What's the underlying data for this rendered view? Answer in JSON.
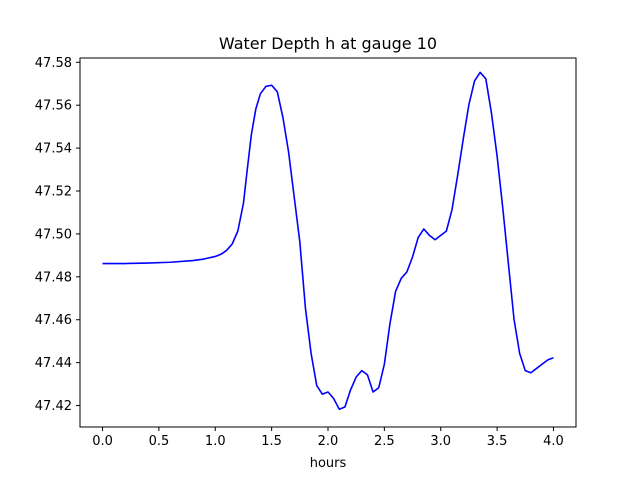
{
  "chart_data": {
    "type": "line",
    "title": "Water Depth h at gauge 10",
    "xlabel": "hours",
    "ylabel": "",
    "xlim": [
      -0.2,
      4.2
    ],
    "ylim": [
      47.41,
      47.582
    ],
    "grid": false,
    "x_ticks": [
      0.0,
      0.5,
      1.0,
      1.5,
      2.0,
      2.5,
      3.0,
      3.5,
      4.0
    ],
    "x_tick_labels": [
      "0.0",
      "0.5",
      "1.0",
      "1.5",
      "2.0",
      "2.5",
      "3.0",
      "3.5",
      "4.0"
    ],
    "y_ticks": [
      47.42,
      47.44,
      47.46,
      47.48,
      47.5,
      47.52,
      47.54,
      47.56,
      47.58
    ],
    "y_tick_labels": [
      "47.42",
      "47.44",
      "47.46",
      "47.48",
      "47.50",
      "47.52",
      "47.54",
      "47.56",
      "47.58"
    ],
    "series": [
      {
        "color": "#0000ff",
        "x": [
          0.0,
          0.2,
          0.4,
          0.6,
          0.8,
          0.9,
          1.0,
          1.05,
          1.1,
          1.15,
          1.2,
          1.25,
          1.28,
          1.32,
          1.36,
          1.4,
          1.45,
          1.5,
          1.55,
          1.6,
          1.65,
          1.7,
          1.75,
          1.8,
          1.85,
          1.9,
          1.95,
          2.0,
          2.05,
          2.1,
          2.15,
          2.2,
          2.25,
          2.3,
          2.35,
          2.4,
          2.45,
          2.5,
          2.55,
          2.6,
          2.65,
          2.7,
          2.75,
          2.8,
          2.85,
          2.9,
          2.95,
          3.0,
          3.05,
          3.1,
          3.15,
          3.2,
          3.25,
          3.3,
          3.35,
          3.4,
          3.45,
          3.5,
          3.55,
          3.6,
          3.65,
          3.7,
          3.75,
          3.8,
          3.85,
          3.9,
          3.95,
          4.0
        ],
        "y": [
          47.4862,
          47.4862,
          47.4864,
          47.4868,
          47.4876,
          47.4883,
          47.4895,
          47.4905,
          47.4923,
          47.4953,
          47.5013,
          47.5143,
          47.5283,
          47.5463,
          47.5583,
          47.5653,
          47.5688,
          47.5693,
          47.5663,
          47.5543,
          47.5383,
          47.5173,
          47.4963,
          47.4653,
          47.4443,
          47.4293,
          47.4253,
          47.4263,
          47.4233,
          47.4183,
          47.4193,
          47.4273,
          47.4333,
          47.4363,
          47.4343,
          47.4263,
          47.4283,
          47.4393,
          47.4583,
          47.4733,
          47.4793,
          47.4823,
          47.4893,
          47.4983,
          47.5023,
          47.4993,
          47.4973,
          47.4993,
          47.5013,
          47.5113,
          47.5273,
          47.5443,
          47.5603,
          47.5713,
          47.5753,
          47.5723,
          47.5563,
          47.5363,
          47.5123,
          47.4863,
          47.4603,
          47.4443,
          47.4363,
          47.4353,
          47.4373,
          47.4393,
          47.4413,
          47.4423
        ]
      }
    ]
  }
}
